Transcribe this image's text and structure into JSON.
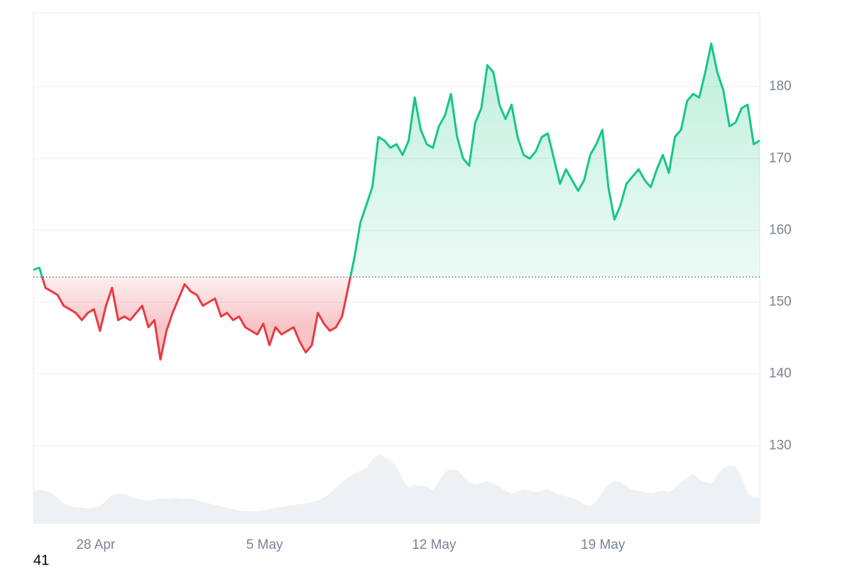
{
  "chart_data": {
    "type": "line",
    "up_color": "#16c784",
    "down_color": "#ea3943",
    "volume_color": "#eef1f4",
    "grid": true,
    "xlim": [
      0,
      120
    ],
    "xticks": [
      {
        "value": 10.3,
        "label": "28 Apr"
      },
      {
        "value": 38.2,
        "label": "5 May"
      },
      {
        "value": 66.2,
        "label": "12 May"
      },
      {
        "value": 94.1,
        "label": "19 May"
      }
    ],
    "ylim": [
      119.2,
      190.3
    ],
    "yticks": [
      130,
      140,
      150,
      160,
      170,
      180
    ],
    "baseline": 153.5,
    "values": [
      154.5,
      154.8,
      152,
      151.5,
      151,
      149.5,
      149,
      148.5,
      147.5,
      148.5,
      149,
      146,
      149.5,
      152,
      147.5,
      148,
      147.5,
      148.5,
      149.5,
      146.5,
      147.5,
      142,
      146,
      148.5,
      150.5,
      152.5,
      151.5,
      151,
      149.5,
      150,
      150.5,
      148,
      148.5,
      147.5,
      148,
      146.5,
      146,
      145.5,
      147,
      144,
      146.5,
      145.5,
      146,
      146.5,
      144.5,
      143,
      144,
      148.5,
      147,
      146,
      146.5,
      148,
      152,
      156,
      161,
      163.5,
      166,
      173,
      172.5,
      171.5,
      172,
      170.5,
      172.5,
      178.5,
      174,
      172,
      171.5,
      174.5,
      176,
      179,
      173,
      170,
      169,
      175,
      177,
      183,
      182,
      177.5,
      175.5,
      177.5,
      173,
      170.5,
      170,
      171,
      173,
      173.5,
      170,
      166.5,
      168.5,
      167,
      165.5,
      167,
      170.5,
      172,
      174,
      166,
      161.5,
      163.5,
      166.5,
      167.5,
      168.5,
      167,
      166,
      168.5,
      170.5,
      168,
      173,
      174,
      178,
      179,
      178.5,
      182,
      186,
      182,
      179.5,
      174.5,
      175,
      177,
      177.5,
      172,
      172.5
    ],
    "volume_lim": [
      0,
      100
    ],
    "volume": [
      45,
      47,
      46,
      42,
      36,
      28,
      24,
      22,
      22,
      21,
      22,
      24,
      32,
      40,
      42,
      41,
      38,
      35,
      33,
      32,
      34,
      35,
      34,
      36,
      35,
      34,
      35,
      33,
      30,
      28,
      26,
      24,
      22,
      20,
      18,
      17,
      17,
      17,
      18,
      20,
      22,
      23,
      24,
      26,
      27,
      28,
      30,
      32,
      36,
      42,
      50,
      58,
      64,
      70,
      74,
      78,
      90,
      97,
      94,
      88,
      80,
      62,
      50,
      54,
      53,
      52,
      46,
      60,
      72,
      76,
      75,
      66,
      58,
      55,
      57,
      59,
      56,
      52,
      46,
      42,
      44,
      48,
      46,
      44,
      46,
      48,
      44,
      40,
      38,
      36,
      32,
      26,
      24,
      32,
      44,
      54,
      60,
      58,
      52,
      47,
      46,
      44,
      42,
      44,
      46,
      44,
      50,
      58,
      64,
      70,
      62,
      58,
      56,
      68,
      78,
      82,
      80,
      66,
      42,
      36,
      36
    ],
    "footer": "41"
  }
}
